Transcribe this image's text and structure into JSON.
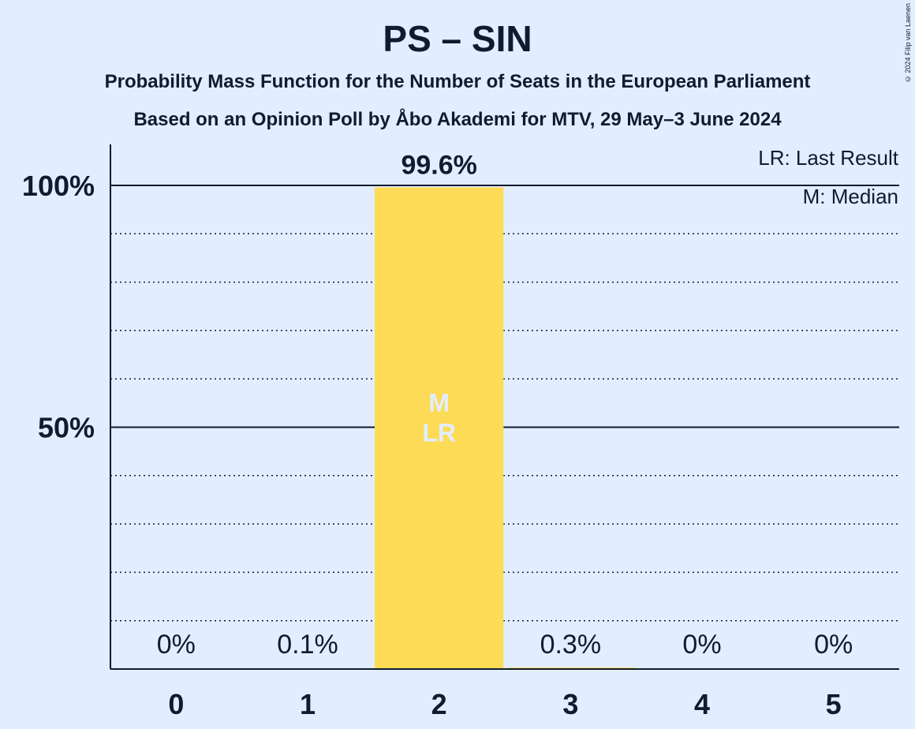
{
  "title": "PS – SIN",
  "subtitle1": "Probability Mass Function for the Number of Seats in the European Parliament",
  "subtitle2": "Based on an Opinion Poll by Åbo Akademi for MTV, 29 May–3 June 2024",
  "copyright": "© 2024 Filip van Laenen",
  "legend": {
    "lr": "LR: Last Result",
    "m": "M: Median"
  },
  "colors": {
    "background": "#e2eeff",
    "bar": "#fddb56",
    "text": "#0f1b30",
    "marker_text": "#e2eeff"
  },
  "chart_data": {
    "type": "bar",
    "categories": [
      "0",
      "1",
      "2",
      "3",
      "4",
      "5"
    ],
    "values": [
      0,
      0.1,
      99.6,
      0.3,
      0,
      0
    ],
    "labels": [
      "0%",
      "0.1%",
      "99.6%",
      "0.3%",
      "0%",
      "0%"
    ],
    "ylim": [
      0,
      100
    ],
    "y_ticks": [
      50,
      100
    ],
    "y_tick_labels": [
      "50%",
      "100%"
    ],
    "minor_gridlines": [
      10,
      20,
      30,
      40,
      60,
      70,
      80,
      90
    ],
    "median_seat": "2",
    "last_result_seat": "2",
    "median_marker": "M",
    "last_result_marker": "LR"
  }
}
